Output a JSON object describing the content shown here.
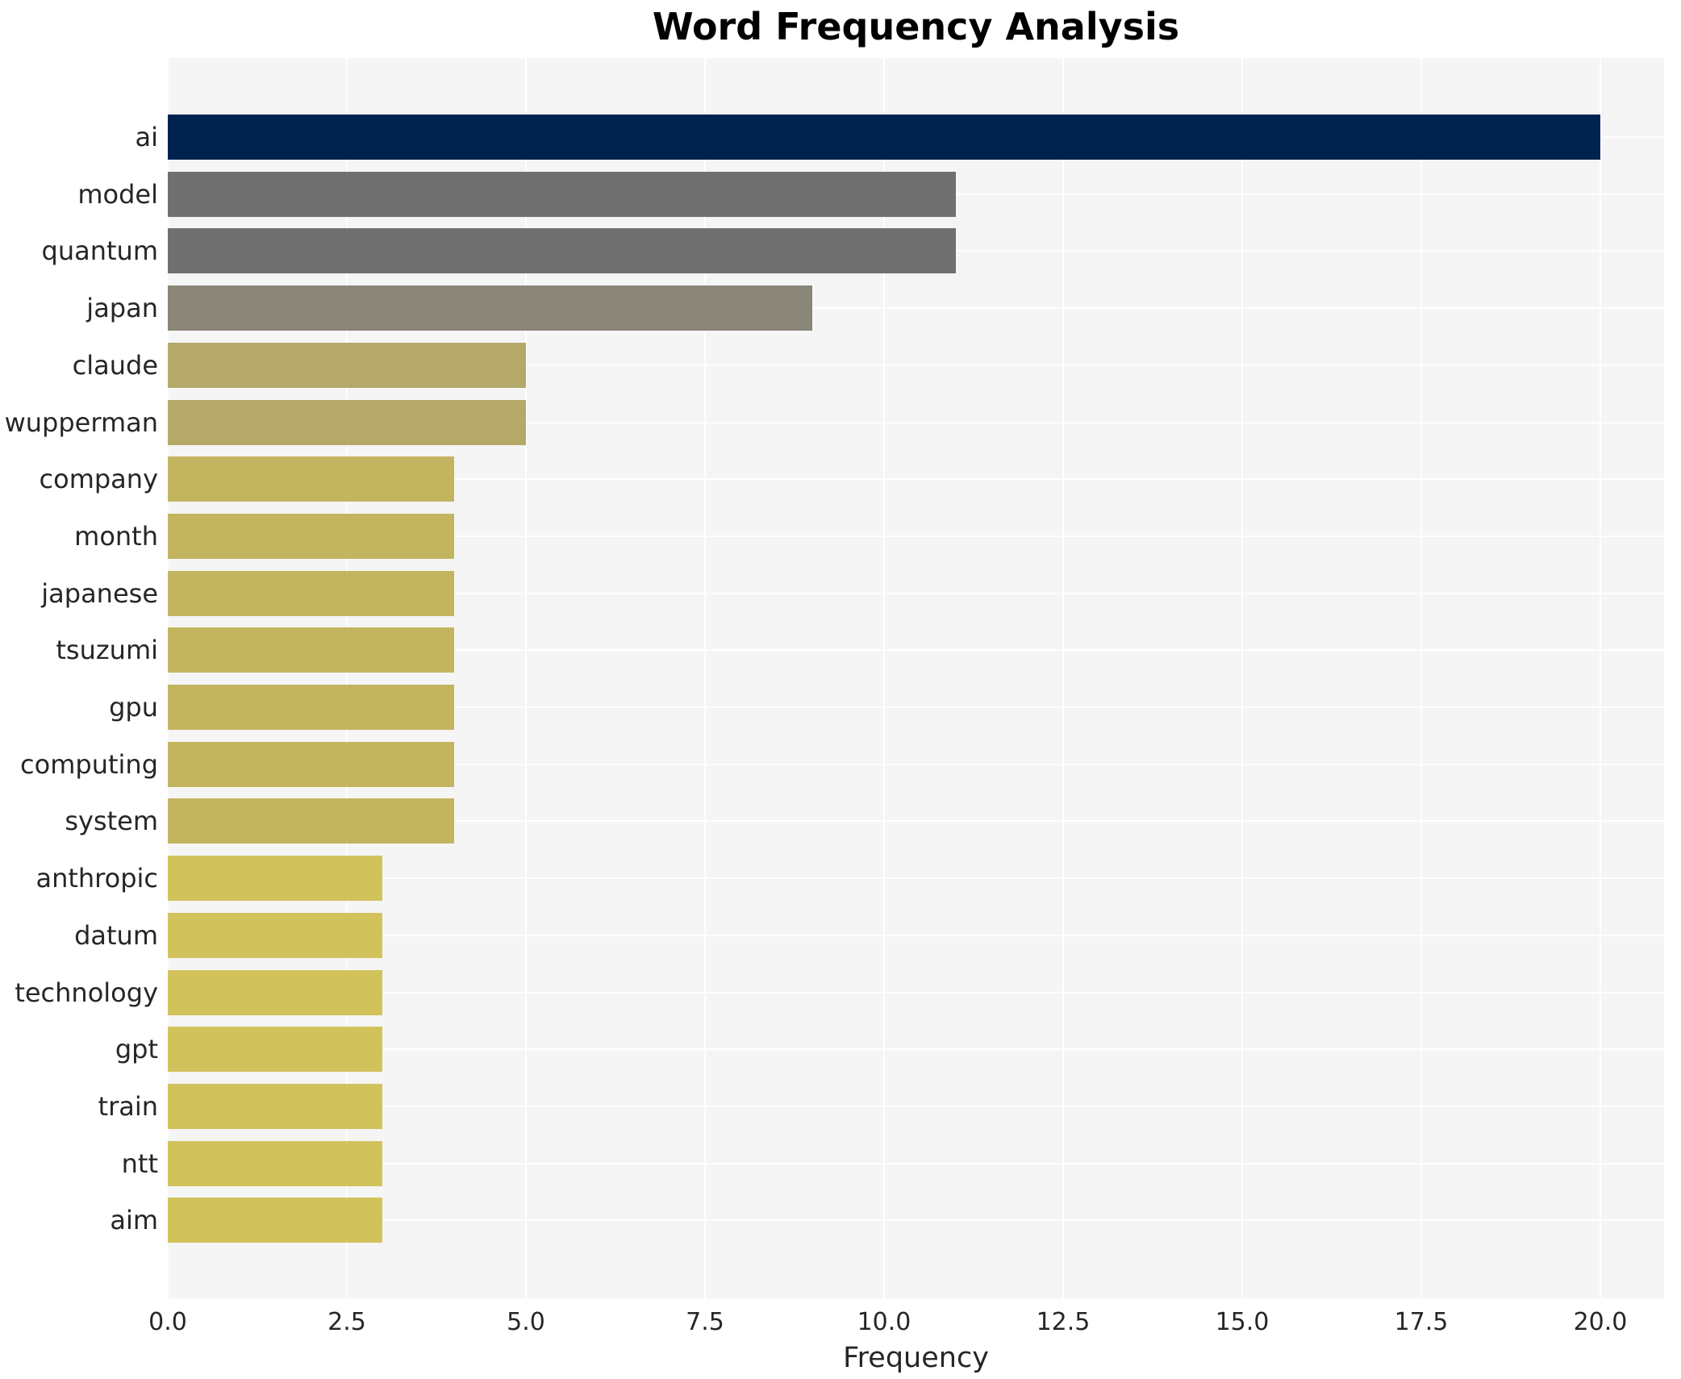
{
  "chart_data": {
    "type": "bar",
    "orientation": "horizontal",
    "title": "Word Frequency Analysis",
    "xlabel": "Frequency",
    "ylabel": "",
    "categories": [
      "ai",
      "model",
      "quantum",
      "japan",
      "claude",
      "wupperman",
      "company",
      "month",
      "japanese",
      "tsuzumi",
      "gpu",
      "computing",
      "system",
      "anthropic",
      "datum",
      "technology",
      "gpt",
      "train",
      "ntt",
      "aim"
    ],
    "values": [
      20,
      11,
      11,
      9,
      5,
      5,
      4,
      4,
      4,
      4,
      4,
      4,
      4,
      3,
      3,
      3,
      3,
      3,
      3,
      3
    ],
    "bar_colors": [
      "#00224e",
      "#717070",
      "#717070",
      "#8a8678",
      "#b5a96a",
      "#b5a96a",
      "#c3b560",
      "#c3b560",
      "#c3b560",
      "#c3b560",
      "#c3b560",
      "#c3b560",
      "#c3b560",
      "#d2c25c",
      "#d2c25c",
      "#d2c25c",
      "#d2c25c",
      "#d2c25c",
      "#d2c25c",
      "#d2c25c"
    ],
    "x_ticks": [
      {
        "value": 0,
        "label": "0.0"
      },
      {
        "value": 2.5,
        "label": "2.5"
      },
      {
        "value": 5,
        "label": "5.0"
      },
      {
        "value": 7.5,
        "label": "7.5"
      },
      {
        "value": 10,
        "label": "10.0"
      },
      {
        "value": 12.5,
        "label": "12.5"
      },
      {
        "value": 15,
        "label": "15.0"
      },
      {
        "value": 17.5,
        "label": "17.5"
      },
      {
        "value": 20,
        "label": "20.0"
      }
    ],
    "xlim": [
      0,
      20.9
    ],
    "grid": true,
    "legend": "none",
    "style": {
      "plot_background": "#f5f5f5",
      "grid_color": "#ffffff",
      "text_color": "#262626",
      "title_color": "#000000"
    }
  }
}
